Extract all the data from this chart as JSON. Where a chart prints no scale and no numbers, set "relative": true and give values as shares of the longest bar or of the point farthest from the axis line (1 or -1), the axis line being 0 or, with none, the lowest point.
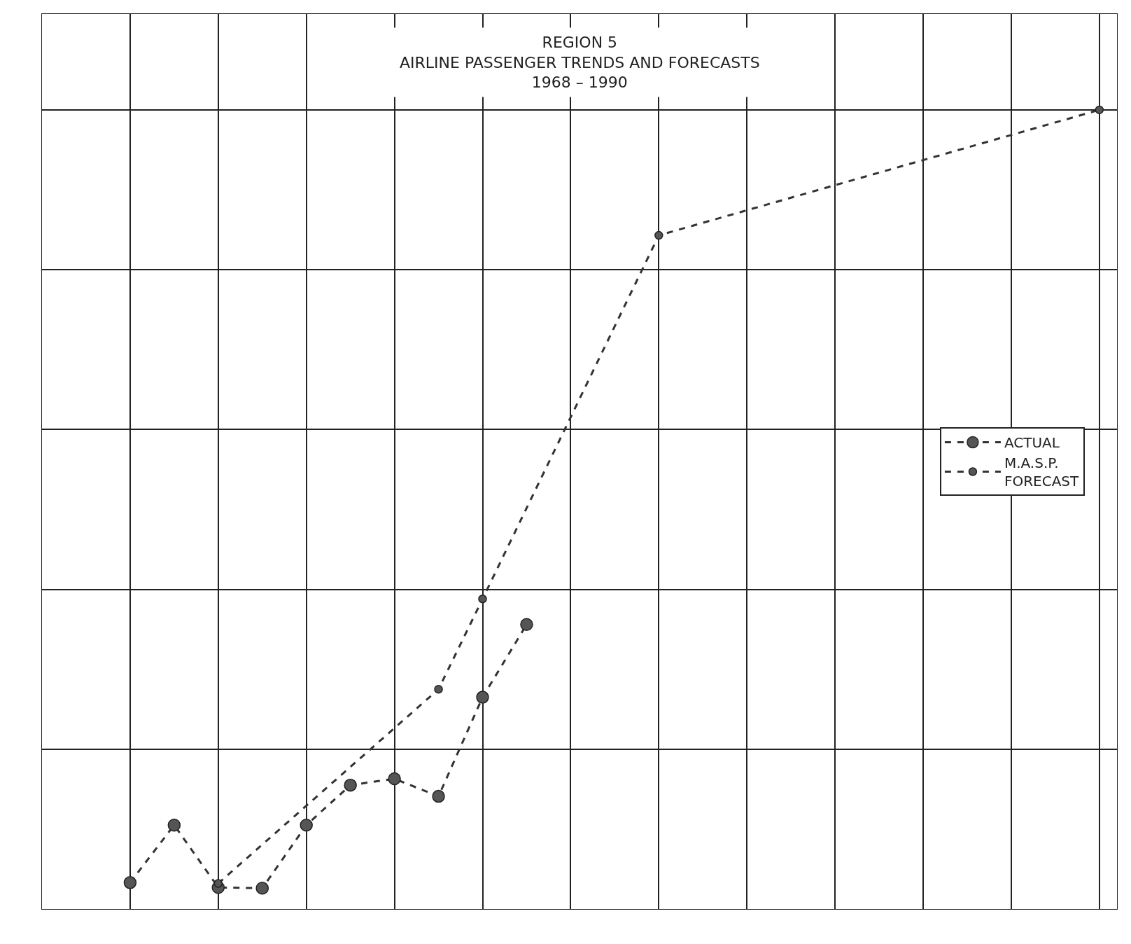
{
  "chart_data": {
    "type": "line",
    "title": "REGION 5\nAIRLINE PASSENGER TRENDS AND FORECASTS\n1968 – 1990",
    "relative": true,
    "categories": [
      null,
      null,
      null,
      null,
      null,
      null,
      null,
      null,
      null,
      null,
      null,
      null,
      null,
      null,
      null,
      null,
      null,
      null,
      null,
      null,
      null,
      null,
      null
    ],
    "series": [
      {
        "name": "ACTUAL",
        "color": "#333333",
        "values": [
          0.033,
          0.105,
          0.027,
          0.026,
          0.105,
          0.155,
          0.163,
          0.141,
          0.265,
          0.356,
          null,
          null,
          null,
          null,
          null,
          null,
          null,
          null,
          null,
          null,
          null,
          null,
          null
        ]
      },
      {
        "name": "M.A.S.P.\nFORECAST",
        "color": "#333333",
        "values": [
          null,
          null,
          0.032,
          null,
          null,
          null,
          null,
          0.275,
          0.388,
          null,
          null,
          null,
          0.843,
          null,
          null,
          null,
          null,
          null,
          null,
          null,
          null,
          null,
          1.0
        ]
      }
    ],
    "grid": true,
    "legend": "right",
    "marker": "circle",
    "line_style": "dashed"
  }
}
